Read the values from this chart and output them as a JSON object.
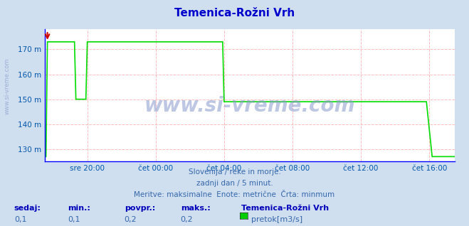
{
  "title": "Temenica-Rožni Vrh",
  "title_color": "#0000cc",
  "bg_color": "#d0dff0",
  "plot_bg_color": "#ffffff",
  "grid_color": "#ffbbbb",
  "xlabel_color": "#0055aa",
  "ylabel_color": "#0055aa",
  "line_color": "#00dd00",
  "axis_color": "#0000ff",
  "ylim": [
    125,
    178
  ],
  "yticks": [
    130,
    140,
    150,
    160,
    170
  ],
  "ytick_labels": [
    "130 m",
    "140 m",
    "150 m",
    "160 m",
    "170 m"
  ],
  "xtick_labels": [
    "sre 20:00",
    "čet 00:00",
    "čet 04:00",
    "čet 08:00",
    "čet 12:00",
    "čet 16:00"
  ],
  "watermark": "www.si-vreme.com",
  "watermark_color": "#8899cc",
  "side_text": "www.si-vreme.com",
  "subtitle1": "Slovenija / reke in morje.",
  "subtitle2": "zadnji dan / 5 minut.",
  "subtitle3": "Meritve: maksimalne  Enote: metrične  Črta: minmum",
  "subtitle_color": "#3366aa",
  "legend_title": "Temenica-Rožni Vrh",
  "legend_label": "pretok[m3/s]",
  "legend_color": "#00cc00",
  "stats_labels": [
    "sedaj:",
    "min.:",
    "povpr.:",
    "maks.:"
  ],
  "stats_values": [
    "0,1",
    "0,1",
    "0,2",
    "0,2"
  ],
  "stats_label_color": "#0000bb",
  "stats_value_color": "#3366aa",
  "figsize": [
    6.59,
    3.18
  ],
  "dpi": 100,
  "n_points": 289,
  "xlim": [
    0,
    288
  ],
  "xtick_pos": [
    30,
    78,
    126,
    174,
    222,
    270
  ]
}
